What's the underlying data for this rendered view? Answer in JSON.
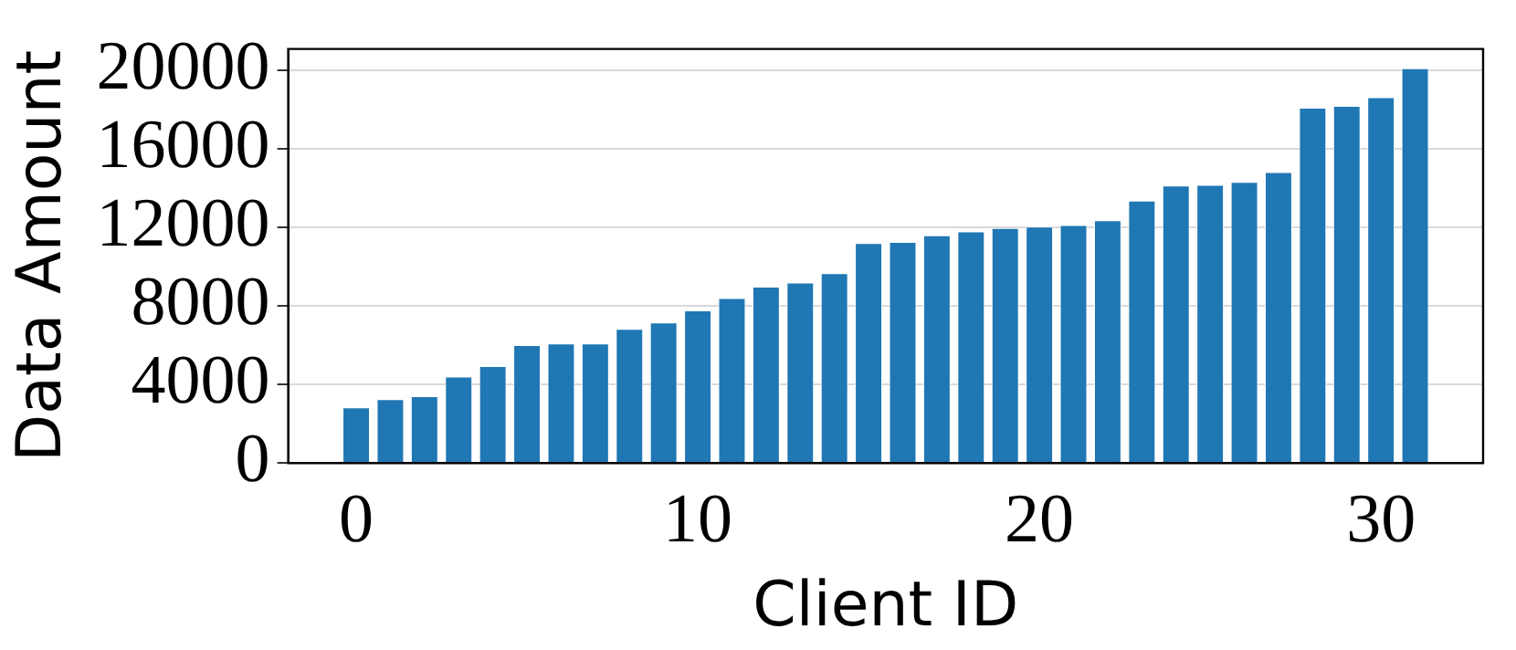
{
  "chart_data": {
    "type": "bar",
    "xlabel": "Client ID",
    "ylabel": "Data Amount",
    "x": [
      0,
      1,
      2,
      3,
      4,
      5,
      6,
      7,
      8,
      9,
      10,
      11,
      12,
      13,
      14,
      15,
      16,
      17,
      18,
      19,
      20,
      21,
      22,
      23,
      24,
      25,
      26,
      27,
      28,
      29,
      30,
      31
    ],
    "values": [
      2840,
      3250,
      3400,
      4410,
      4940,
      6010,
      6090,
      6090,
      6830,
      7160,
      7780,
      8400,
      8990,
      9200,
      9670,
      11210,
      11270,
      11600,
      11800,
      11980,
      12040,
      12130,
      12370,
      13370,
      14140,
      14170,
      14320,
      14820,
      18110,
      18200,
      18640,
      20120
    ],
    "color": "#1f77b4",
    "xlim": [
      -1.99,
      32.99
    ],
    "xticks": [
      0,
      10,
      20,
      30
    ],
    "ylim": [
      0,
      21100
    ],
    "yticks": [
      0,
      4000,
      8000,
      12000,
      16000,
      20000
    ],
    "grid": "y"
  }
}
